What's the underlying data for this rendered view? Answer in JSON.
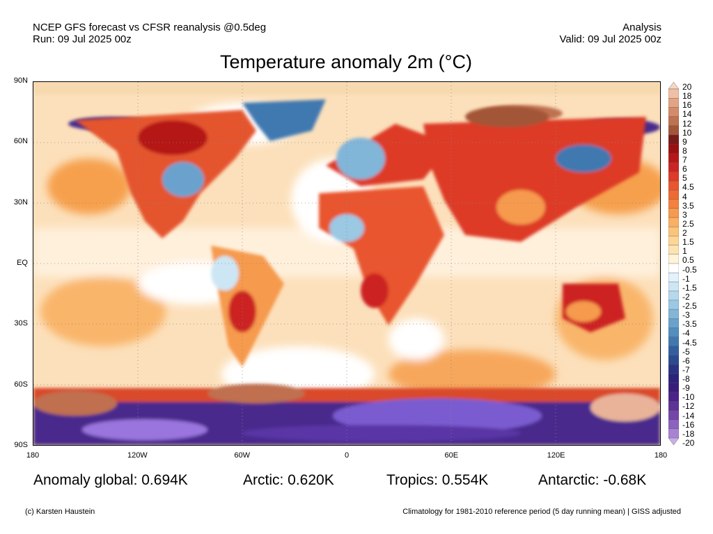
{
  "header": {
    "line1_left": "NCEP GFS forecast vs CFSR reanalysis @0.5deg",
    "line2_left": "Run: 09 Jul 2025 00z",
    "line1_right": "Analysis",
    "line2_right": "Valid: 09 Jul 2025 00z"
  },
  "title": "Temperature anomaly 2m (°C)",
  "map": {
    "lat_labels": [
      "90N",
      "60N",
      "30N",
      "EQ",
      "30S",
      "60S",
      "90S"
    ],
    "lon_labels": [
      "180",
      "120W",
      "60W",
      "0",
      "60E",
      "120E",
      "180"
    ]
  },
  "colorbar": {
    "labels": [
      "20",
      "18",
      "16",
      "14",
      "12",
      "10",
      "9",
      "8",
      "7",
      "6",
      "5",
      "4.5",
      "4",
      "3.5",
      "3",
      "2.5",
      "2",
      "1.5",
      "1",
      "0.5",
      "-0.5",
      "-1",
      "-1.5",
      "-2",
      "-2.5",
      "-3",
      "-3.5",
      "-4",
      "-4.5",
      "-5",
      "-6",
      "-7",
      "-8",
      "-9",
      "-10",
      "-12",
      "-14",
      "-16",
      "-18",
      "-20"
    ],
    "colors": [
      "#f8d6c4",
      "#efbfa6",
      "#e3a484",
      "#d48b6a",
      "#c0714f",
      "#a35538",
      "#7a1a1a",
      "#9b1010",
      "#b51818",
      "#cc2424",
      "#dd3a28",
      "#e8552e",
      "#ee6a34",
      "#f3823d",
      "#f69a4d",
      "#f9b062",
      "#fbc47b",
      "#fdd595",
      "#fee3b2",
      "#fff3d8",
      "#ffffff",
      "#e3f1fa",
      "#cde6f4",
      "#b5d8ec",
      "#9bc8e3",
      "#82b6d9",
      "#6aa2cd",
      "#548dbf",
      "#4178b0",
      "#335f9f",
      "#2c4a90",
      "#2a3383",
      "#2d237a",
      "#3a1d7a",
      "#4c2389",
      "#5e3296",
      "#7446aa",
      "#8c62bf",
      "#a883d4",
      "#c8aee6"
    ]
  },
  "stats": {
    "global": "Anomaly global: 0.694K",
    "arctic": "Arctic: 0.620K",
    "tropics": "Tropics: 0.554K",
    "antarctic": "Antarctic: -0.68K"
  },
  "footer": {
    "left": "(c) Karsten Haustein",
    "right": "Climatology for 1981-2010 reference period (5 day running mean) | GISS adjusted"
  }
}
